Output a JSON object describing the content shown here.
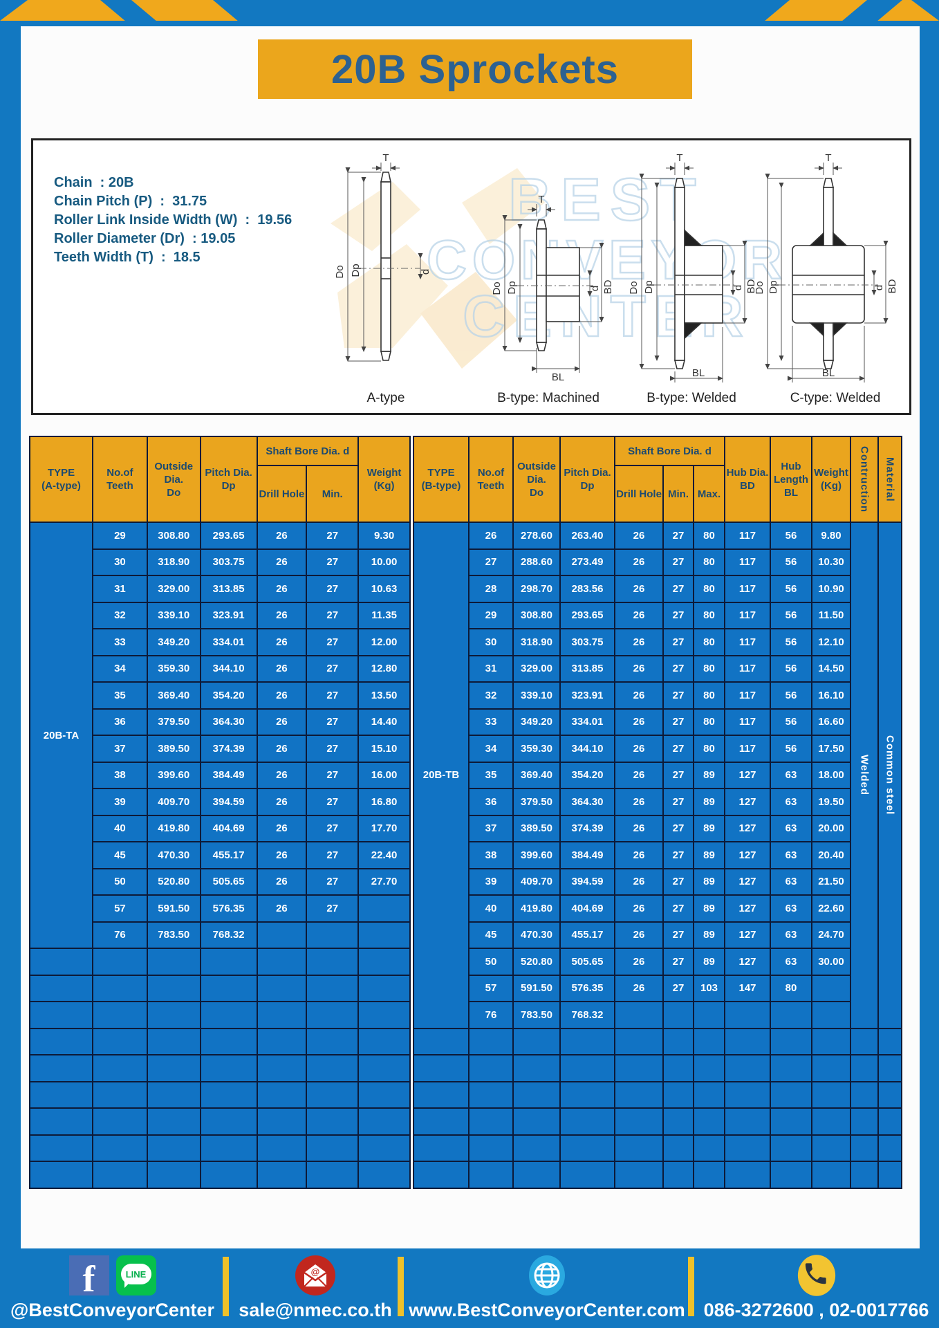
{
  "page": {
    "title": "20B Sprockets"
  },
  "specs": [
    "Chain  : 20B",
    "Chain Pitch (P)  :  31.75",
    "Roller Link Inside Width (W)  :  19.56",
    "Roller Diameter (Dr)  : 19.05",
    "Teeth Width (T)  :  18.5"
  ],
  "watermark": {
    "line1": "BEST",
    "line2": "CONVEYOR",
    "line3": "CENTER"
  },
  "diagrams": {
    "captions": [
      "A-type",
      "B-type: Machined",
      "B-type: Welded",
      "C-type: Welded"
    ],
    "dims": {
      "t": "T",
      "do": "Do",
      "dp": "Dp",
      "d": "d",
      "bd": "BD",
      "bl": "BL"
    }
  },
  "table_a": {
    "headers": {
      "type": "TYPE\n(A-type)",
      "teeth": "No.of\nTeeth",
      "outside": "Outside\nDia.\nDo",
      "pitch": "Pitch Dia.\nDp",
      "shaft": "Shaft Bore Dia. d",
      "drill": "Drill Hole",
      "min": "Min.",
      "weight": "Weight\n(Kg)"
    },
    "type_label": "20B-TA",
    "rows": [
      [
        "29",
        "308.80",
        "293.65",
        "26",
        "27",
        "9.30"
      ],
      [
        "30",
        "318.90",
        "303.75",
        "26",
        "27",
        "10.00"
      ],
      [
        "31",
        "329.00",
        "313.85",
        "26",
        "27",
        "10.63"
      ],
      [
        "32",
        "339.10",
        "323.91",
        "26",
        "27",
        "11.35"
      ],
      [
        "33",
        "349.20",
        "334.01",
        "26",
        "27",
        "12.00"
      ],
      [
        "34",
        "359.30",
        "344.10",
        "26",
        "27",
        "12.80"
      ],
      [
        "35",
        "369.40",
        "354.20",
        "26",
        "27",
        "13.50"
      ],
      [
        "36",
        "379.50",
        "364.30",
        "26",
        "27",
        "14.40"
      ],
      [
        "37",
        "389.50",
        "374.39",
        "26",
        "27",
        "15.10"
      ],
      [
        "38",
        "399.60",
        "384.49",
        "26",
        "27",
        "16.00"
      ],
      [
        "39",
        "409.70",
        "394.59",
        "26",
        "27",
        "16.80"
      ],
      [
        "40",
        "419.80",
        "404.69",
        "26",
        "27",
        "17.70"
      ],
      [
        "45",
        "470.30",
        "455.17",
        "26",
        "27",
        "22.40"
      ],
      [
        "50",
        "520.80",
        "505.65",
        "26",
        "27",
        "27.70"
      ],
      [
        "57",
        "591.50",
        "576.35",
        "26",
        "27",
        ""
      ],
      [
        "76",
        "783.50",
        "768.32",
        "",
        "",
        ""
      ]
    ],
    "empty_rows": 9
  },
  "table_b": {
    "headers": {
      "type": "TYPE\n(B-type)",
      "teeth": "No.of\nTeeth",
      "outside": "Outside\nDia.\nDo",
      "pitch": "Pitch Dia.\nDp",
      "shaft": "Shaft Bore Dia. d",
      "drill": "Drill Hole",
      "min": "Min.",
      "max": "Max.",
      "hub_dia": "Hub Dia.\nBD",
      "hub_len": "Hub\nLength\nBL",
      "weight": "Weight\n(Kg)",
      "construction": "Contruction",
      "material": "Material"
    },
    "type_label": "20B-TB",
    "construction_value": "Welded",
    "material_value": "Common  steel",
    "rows": [
      [
        "26",
        "278.60",
        "263.40",
        "26",
        "27",
        "80",
        "117",
        "56",
        "9.80"
      ],
      [
        "27",
        "288.60",
        "273.49",
        "26",
        "27",
        "80",
        "117",
        "56",
        "10.30"
      ],
      [
        "28",
        "298.70",
        "283.56",
        "26",
        "27",
        "80",
        "117",
        "56",
        "10.90"
      ],
      [
        "29",
        "308.80",
        "293.65",
        "26",
        "27",
        "80",
        "117",
        "56",
        "11.50"
      ],
      [
        "30",
        "318.90",
        "303.75",
        "26",
        "27",
        "80",
        "117",
        "56",
        "12.10"
      ],
      [
        "31",
        "329.00",
        "313.85",
        "26",
        "27",
        "80",
        "117",
        "56",
        "14.50"
      ],
      [
        "32",
        "339.10",
        "323.91",
        "26",
        "27",
        "80",
        "117",
        "56",
        "16.10"
      ],
      [
        "33",
        "349.20",
        "334.01",
        "26",
        "27",
        "80",
        "117",
        "56",
        "16.60"
      ],
      [
        "34",
        "359.30",
        "344.10",
        "26",
        "27",
        "80",
        "117",
        "56",
        "17.50"
      ],
      [
        "35",
        "369.40",
        "354.20",
        "26",
        "27",
        "89",
        "127",
        "63",
        "18.00"
      ],
      [
        "36",
        "379.50",
        "364.30",
        "26",
        "27",
        "89",
        "127",
        "63",
        "19.50"
      ],
      [
        "37",
        "389.50",
        "374.39",
        "26",
        "27",
        "89",
        "127",
        "63",
        "20.00"
      ],
      [
        "38",
        "399.60",
        "384.49",
        "26",
        "27",
        "89",
        "127",
        "63",
        "20.40"
      ],
      [
        "39",
        "409.70",
        "394.59",
        "26",
        "27",
        "89",
        "127",
        "63",
        "21.50"
      ],
      [
        "40",
        "419.80",
        "404.69",
        "26",
        "27",
        "89",
        "127",
        "63",
        "22.60"
      ],
      [
        "45",
        "470.30",
        "455.17",
        "26",
        "27",
        "89",
        "127",
        "63",
        "24.70"
      ],
      [
        "50",
        "520.80",
        "505.65",
        "26",
        "27",
        "89",
        "127",
        "63",
        "30.00"
      ],
      [
        "57",
        "591.50",
        "576.35",
        "26",
        "27",
        "103",
        "147",
        "80",
        ""
      ],
      [
        "76",
        "783.50",
        "768.32",
        "",
        "",
        "",
        "",
        "",
        ""
      ]
    ],
    "empty_rows": 6
  },
  "footer": {
    "social_label": "@BestConveyorCenter",
    "line_badge": "LINE",
    "email": "sale@nmec.co.th",
    "website": "www.BestConveyorCenter.com",
    "phones": "086-3272600 , 02-0017766"
  }
}
